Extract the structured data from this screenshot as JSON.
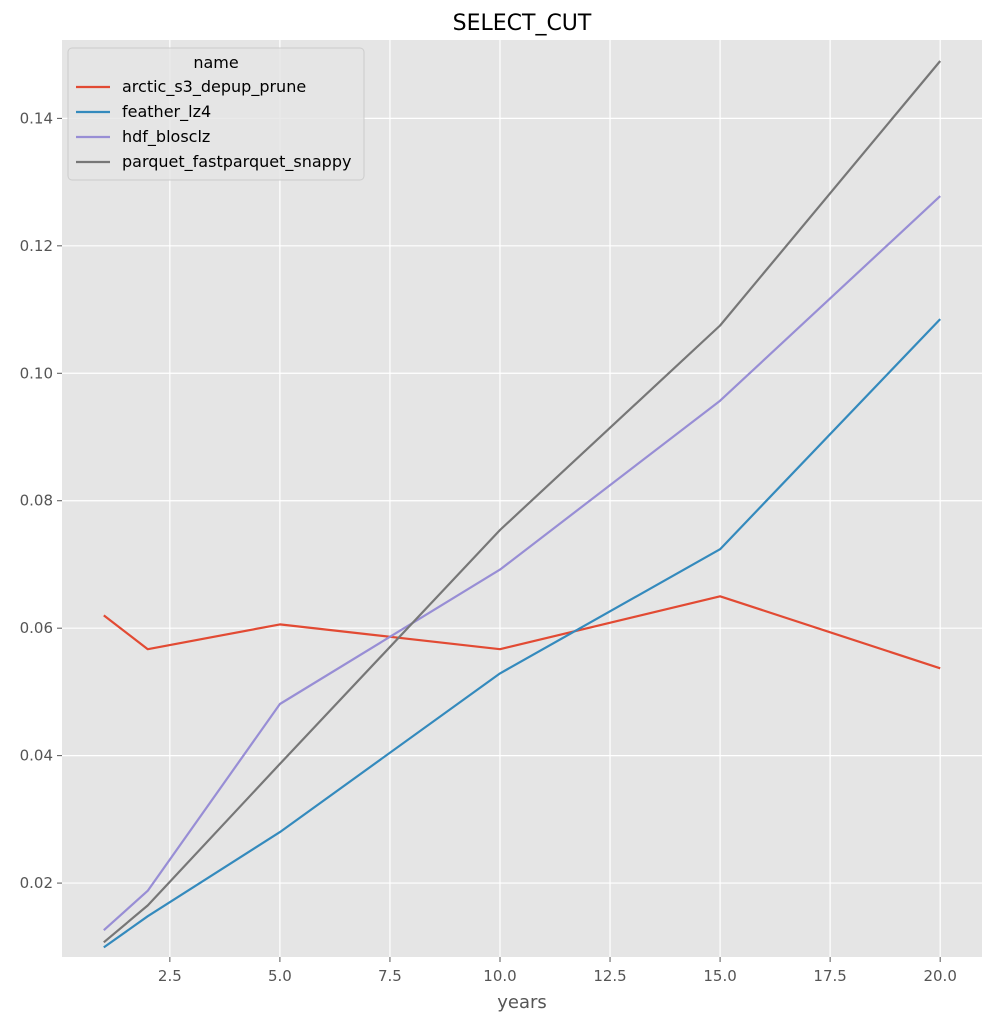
{
  "chart_data": {
    "type": "line",
    "title": "SELECT_CUT",
    "xlabel": "years",
    "ylabel": "",
    "x": [
      1,
      2,
      5,
      10,
      15,
      20
    ],
    "xlim": [
      0.05,
      20.95
    ],
    "ylim": [
      0.0084,
      0.1523
    ],
    "xticks": [
      2.5,
      5.0,
      7.5,
      10.0,
      12.5,
      15.0,
      17.5,
      20.0
    ],
    "xtick_labels": [
      "2.5",
      "5.0",
      "7.5",
      "10.0",
      "12.5",
      "15.0",
      "17.5",
      "20.0"
    ],
    "yticks": [
      0.02,
      0.04,
      0.06,
      0.08,
      0.1,
      0.12,
      0.14
    ],
    "ytick_labels": [
      "0.02",
      "0.04",
      "0.06",
      "0.08",
      "0.10",
      "0.12",
      "0.14"
    ],
    "grid": true,
    "legend": {
      "title": "name",
      "placement": "top-left"
    },
    "series": [
      {
        "name": "arctic_s3_depup_prune",
        "color": "#E24A33",
        "values": [
          0.062,
          0.0567,
          0.0606,
          0.0567,
          0.065,
          0.0537
        ]
      },
      {
        "name": "feather_lz4",
        "color": "#348ABD",
        "values": [
          0.0099,
          0.0148,
          0.028,
          0.0529,
          0.0724,
          0.1085
        ]
      },
      {
        "name": "hdf_blosclz",
        "color": "#988ED5",
        "values": [
          0.0126,
          0.0188,
          0.0481,
          0.0692,
          0.0957,
          0.1278
        ]
      },
      {
        "name": "parquet_fastparquet_snappy",
        "color": "#777777",
        "values": [
          0.0107,
          0.0165,
          0.0387,
          0.0754,
          0.1075,
          0.149
        ]
      }
    ],
    "colors": {
      "plot_background": "#E5E5E5",
      "grid": "#FFFFFF"
    }
  }
}
